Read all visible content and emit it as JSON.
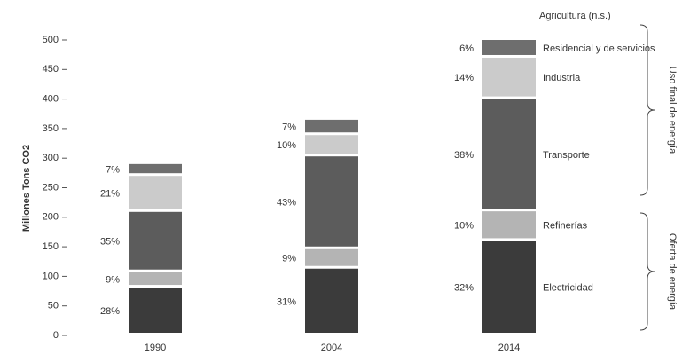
{
  "chart_data": {
    "type": "stacked-bar",
    "ylabel": "Millones Tons CO2",
    "categories": [
      "1990",
      "2004",
      "2014"
    ],
    "series": [
      {
        "name": "Electricidad",
        "color": "#3b3b3b",
        "values": [
          81,
          113,
          160
        ],
        "labels": [
          "28%",
          "31%",
          "32%"
        ]
      },
      {
        "name": "Refinerías",
        "color": "#b4b4b4",
        "values": [
          26,
          33,
          50
        ],
        "labels": [
          "9%",
          "9%",
          "10%"
        ]
      },
      {
        "name": "Transporte",
        "color": "#5c5c5c",
        "values": [
          102,
          157,
          190
        ],
        "labels": [
          "35%",
          "43%",
          "38%"
        ]
      },
      {
        "name": "Industria",
        "color": "#cbcbcb",
        "values": [
          61,
          36,
          70
        ],
        "labels": [
          "21%",
          "10%",
          "14%"
        ]
      },
      {
        "name": "Residencial y de servicios",
        "color": "#6e6e6e",
        "values": [
          20,
          26,
          30
        ],
        "labels": [
          "7%",
          "7%",
          "6%"
        ]
      }
    ],
    "note": "Agricultura (n.s.)",
    "groups": [
      "Uso final de energía",
      "Oferta de energía"
    ],
    "ylim": [
      0,
      500
    ],
    "yticks": [
      0,
      50,
      100,
      150,
      200,
      250,
      300,
      350,
      400,
      450,
      500
    ]
  }
}
